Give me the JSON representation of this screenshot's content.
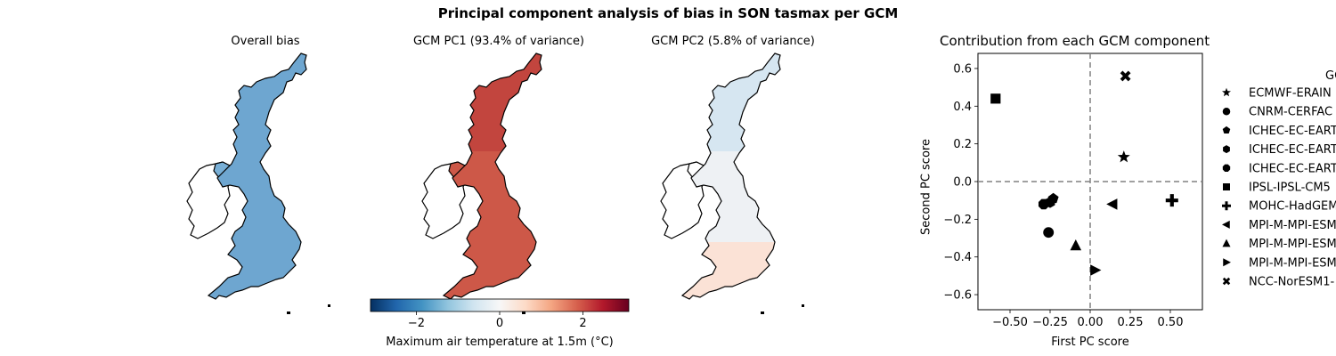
{
  "figure": {
    "suptitle": "Principal component analysis of bias in SON tasmax per GCM",
    "map_titles": [
      "Overall bias",
      "GCM PC1 (93.4% of variance)",
      "GCM PC2 (5.8% of variance)"
    ],
    "colorbar": {
      "label": "Maximum air temperature at 1.5m (°C)",
      "ticks": [
        -2,
        0,
        2
      ],
      "tick_labels": [
        "−2",
        "0",
        "2"
      ],
      "range": [
        -3.1,
        3.1
      ],
      "colormap": "RdBu_r",
      "colors": [
        "#053061",
        "#2166ac",
        "#4393c3",
        "#92c5de",
        "#d1e5f0",
        "#f7f7f7",
        "#fddbc7",
        "#f4a582",
        "#d6604d",
        "#b2182b",
        "#67001f"
      ]
    },
    "map_fill_colors": {
      "overall_bias": "#6ea6d0",
      "overall_bias_ni": "#78afd6",
      "pc1": "#cd5848",
      "pc1_north": "#c2453e",
      "pc2_north": "#d6e6f1",
      "pc2_mid": "#eef1f4",
      "pc2_south": "#fbe2d6"
    }
  },
  "chart_data": {
    "type": "scatter",
    "title": "Contribution from each GCM component",
    "xlabel": "First PC score",
    "ylabel": "Second PC score",
    "xlim": [
      -0.7,
      0.7
    ],
    "ylim": [
      -0.68,
      0.68
    ],
    "xticks": [
      -0.5,
      -0.25,
      0.0,
      0.25,
      0.5
    ],
    "xtick_labels": [
      "−0.50",
      "−0.25",
      "0.00",
      "0.25",
      "0.50"
    ],
    "yticks": [
      -0.6,
      -0.4,
      -0.2,
      0.0,
      0.2,
      0.4,
      0.6
    ],
    "ytick_labels": [
      "−0.6",
      "−0.4",
      "−0.2",
      "0.0",
      "0.2",
      "0.4",
      "0.6"
    ],
    "reference_lines": {
      "x": 0.0,
      "y": 0.0,
      "style": "dashed",
      "color": "#808080"
    },
    "legend": {
      "title": "GC",
      "placement": "right, outside axes"
    },
    "series": [
      {
        "name": "ECMWF-ERAIN",
        "marker": "star",
        "x": 0.21,
        "y": 0.13
      },
      {
        "name": "CNRM-CERFAC",
        "marker": "circle",
        "x": -0.26,
        "y": -0.27
      },
      {
        "name": "ICHEC-EC-EART",
        "marker": "pentagon",
        "x": -0.23,
        "y": -0.09
      },
      {
        "name": "ICHEC-EC-EART",
        "marker": "hexagon",
        "x": -0.25,
        "y": -0.11
      },
      {
        "name": "ICHEC-EC-EART",
        "marker": "octagon",
        "x": -0.29,
        "y": -0.12
      },
      {
        "name": "IPSL-IPSL-CM5",
        "marker": "square",
        "x": -0.59,
        "y": 0.44
      },
      {
        "name": "MOHC-HadGEM",
        "marker": "plus",
        "x": 0.51,
        "y": -0.1
      },
      {
        "name": "MPI-M-MPI-ESM",
        "marker": "triangle-left",
        "x": 0.14,
        "y": -0.12
      },
      {
        "name": "MPI-M-MPI-ESM",
        "marker": "triangle-up",
        "x": -0.09,
        "y": -0.34
      },
      {
        "name": "MPI-M-MPI-ESM",
        "marker": "triangle-right",
        "x": 0.03,
        "y": -0.47
      },
      {
        "name": "NCC-NorESM1-",
        "marker": "x",
        "x": 0.22,
        "y": 0.56
      }
    ]
  }
}
